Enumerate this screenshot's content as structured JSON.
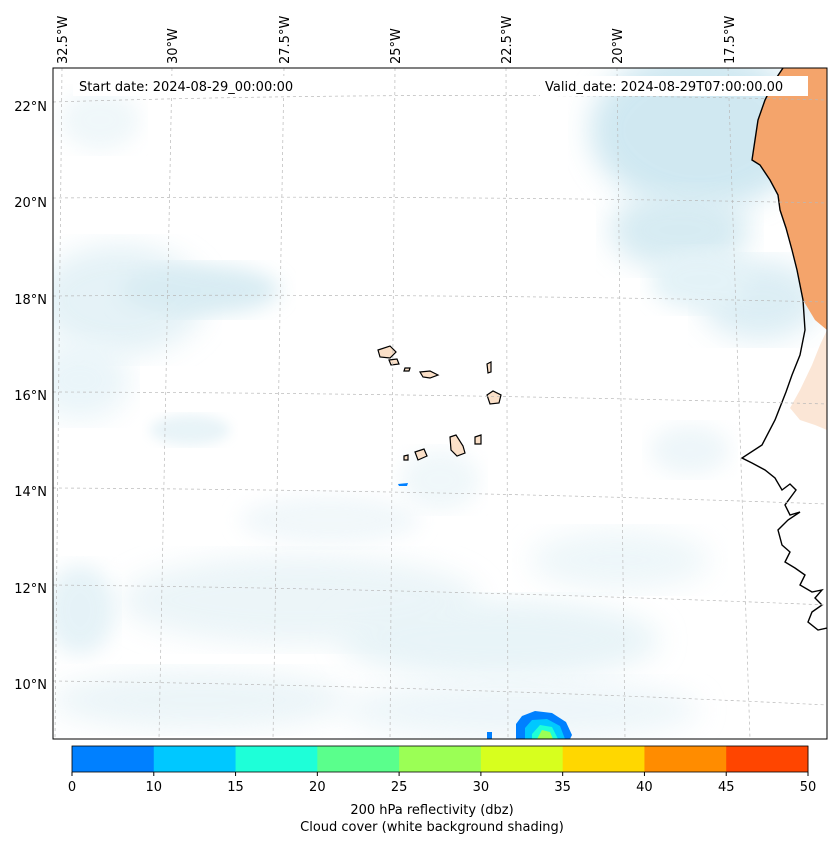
{
  "map": {
    "start_date": "Start date: 2024-08-29_00:00:00",
    "valid_date": "Valid_date: 2024-08-29T07:00:00.00",
    "lon_labels": [
      "32.5°W",
      "30°W",
      "27.5°W",
      "25°W",
      "22.5°W",
      "20°W",
      "17.5°W"
    ],
    "lat_labels": [
      "22°N",
      "20°N",
      "18°N",
      "16°N",
      "14°N",
      "12°N",
      "10°N"
    ],
    "land_color": "#f4a46b",
    "island_fill": "#fbe0c8",
    "cloud_color": "#a9d6e6",
    "features": [
      "cloud-cover",
      "island",
      "coastline",
      "reflectivity-cell"
    ]
  },
  "colorbar": {
    "ticks": [
      "0",
      "10",
      "15",
      "20",
      "25",
      "30",
      "35",
      "40",
      "45",
      "50"
    ],
    "colors": [
      "#0080ff",
      "#00c8ff",
      "#1effd8",
      "#5aff8c",
      "#9bff55",
      "#d7ff1e",
      "#ffd700",
      "#ff8c00",
      "#ff4500"
    ],
    "label_line1": "200 hPa reflectivity (dbz)",
    "label_line2": "Cloud cover (white background shading)"
  }
}
